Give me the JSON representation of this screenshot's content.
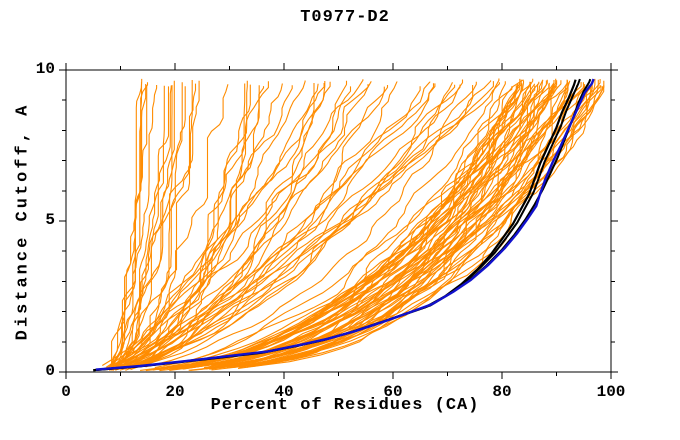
{
  "chart_data": {
    "type": "line",
    "title": "T0977-D2",
    "xlabel": "Percent of Residues (CA)",
    "ylabel": "Distance Cutoff, A",
    "xlim": [
      0,
      100
    ],
    "ylim": [
      0,
      10
    ],
    "x_major_ticks": [
      0,
      20,
      40,
      60,
      80,
      100
    ],
    "x_minor_step": 10,
    "y_major_ticks": [
      0,
      5,
      10
    ],
    "y_minor_step": 1,
    "grid": false,
    "legend": null,
    "tick_style": "outward-mirrored-all-sides",
    "colors": {
      "ensemble": "#FF8C00",
      "black_model": "#000000",
      "blue_model": "#1111CC",
      "frame": "#000000",
      "background": "#FFFFFF"
    },
    "ensemble": {
      "description": "approx 110 orange model curves fanning from ~5% at 0 A; best models reach ~100% and worst ~11% at cutoff ~9.7 A",
      "count": 110,
      "seed": 20977,
      "start_percent": [
        3.5,
        8
      ],
      "start_cutoff": [
        0.04,
        0.22
      ],
      "top_cutoff": [
        9.45,
        9.72
      ],
      "groups": [
        {
          "name": "poor",
          "weight": 0.18,
          "end_percent": [
            11,
            40
          ],
          "shape_p": [
            0.3,
            0.55
          ]
        },
        {
          "name": "mid",
          "weight": 0.27,
          "end_percent": [
            40,
            82
          ],
          "shape_p": [
            0.42,
            0.78
          ]
        },
        {
          "name": "good",
          "weight": 0.55,
          "end_percent": [
            82,
            100.4
          ],
          "shape_p": [
            0.26,
            0.45
          ]
        }
      ],
      "wiggle": 1.5,
      "y_step": 0.22
    },
    "highlight_series": [
      {
        "name": "black-model-1",
        "color": "#000000",
        "width": 2.2,
        "points": [
          [
            5,
            0.06
          ],
          [
            13,
            0.18
          ],
          [
            21,
            0.33
          ],
          [
            28,
            0.47
          ],
          [
            36,
            0.64
          ],
          [
            42,
            0.85
          ],
          [
            47,
            1.05
          ],
          [
            52,
            1.3
          ],
          [
            57,
            1.6
          ],
          [
            62,
            1.9
          ],
          [
            66,
            2.15
          ],
          [
            69.5,
            2.5
          ],
          [
            72.5,
            2.9
          ],
          [
            75.5,
            3.4
          ],
          [
            78,
            3.9
          ],
          [
            80,
            4.4
          ],
          [
            82,
            4.9
          ],
          [
            83.5,
            5.4
          ],
          [
            85,
            5.9
          ],
          [
            86,
            6.4
          ],
          [
            87,
            6.9
          ],
          [
            88.5,
            7.5
          ],
          [
            90,
            8.1
          ],
          [
            91,
            8.6
          ],
          [
            92.3,
            9.1
          ],
          [
            93.2,
            9.5
          ],
          [
            93.5,
            9.68
          ]
        ]
      },
      {
        "name": "black-model-2",
        "color": "#000000",
        "width": 2.0,
        "points": [
          [
            5,
            0.06
          ],
          [
            13,
            0.18
          ],
          [
            21.3,
            0.34
          ],
          [
            28.3,
            0.48
          ],
          [
            36.3,
            0.65
          ],
          [
            42.3,
            0.86
          ],
          [
            47.3,
            1.06
          ],
          [
            52.3,
            1.31
          ],
          [
            57.3,
            1.61
          ],
          [
            62.3,
            1.92
          ],
          [
            66.3,
            2.17
          ],
          [
            70,
            2.55
          ],
          [
            73,
            2.95
          ],
          [
            76,
            3.45
          ],
          [
            78.7,
            3.95
          ],
          [
            80.8,
            4.45
          ],
          [
            82.8,
            4.95
          ],
          [
            84.3,
            5.45
          ],
          [
            85.8,
            5.95
          ],
          [
            86.8,
            6.45
          ],
          [
            87.8,
            6.95
          ],
          [
            89.3,
            7.55
          ],
          [
            90.8,
            8.15
          ],
          [
            91.8,
            8.65
          ],
          [
            93,
            9.15
          ],
          [
            94,
            9.55
          ],
          [
            94.3,
            9.7
          ]
        ]
      },
      {
        "name": "black-model-3",
        "color": "#000000",
        "width": 2.0,
        "points": [
          [
            5.3,
            0.07
          ],
          [
            13.3,
            0.19
          ],
          [
            21.6,
            0.35
          ],
          [
            28.6,
            0.5
          ],
          [
            36.6,
            0.67
          ],
          [
            42.6,
            0.88
          ],
          [
            47.6,
            1.08
          ],
          [
            52.6,
            1.33
          ],
          [
            57.6,
            1.63
          ],
          [
            62.6,
            1.95
          ],
          [
            66.8,
            2.2
          ],
          [
            70.5,
            2.6
          ],
          [
            73.8,
            3.0
          ],
          [
            77,
            3.5
          ],
          [
            80,
            4.05
          ],
          [
            82.3,
            4.55
          ],
          [
            84.3,
            5.05
          ],
          [
            86,
            5.55
          ],
          [
            87.5,
            6.05
          ],
          [
            88.8,
            6.55
          ],
          [
            90.2,
            7.1
          ],
          [
            91.5,
            7.7
          ],
          [
            92.8,
            8.3
          ],
          [
            94,
            8.9
          ],
          [
            95,
            9.3
          ],
          [
            96,
            9.6
          ],
          [
            96.2,
            9.7
          ]
        ]
      },
      {
        "name": "blue-model",
        "color": "#1111CC",
        "width": 2.4,
        "points": [
          [
            5.5,
            0.08
          ],
          [
            13.6,
            0.2
          ],
          [
            22,
            0.36
          ],
          [
            29,
            0.51
          ],
          [
            37,
            0.68
          ],
          [
            43,
            0.9
          ],
          [
            48,
            1.1
          ],
          [
            53,
            1.35
          ],
          [
            58,
            1.65
          ],
          [
            63,
            1.97
          ],
          [
            67.2,
            2.25
          ],
          [
            71,
            2.65
          ],
          [
            74.3,
            3.05
          ],
          [
            77.5,
            3.55
          ],
          [
            80.5,
            4.1
          ],
          [
            82.8,
            4.6
          ],
          [
            84.8,
            5.1
          ],
          [
            86.3,
            5.5
          ],
          [
            87,
            5.9
          ],
          [
            88,
            6.4
          ],
          [
            89.3,
            6.95
          ],
          [
            90.8,
            7.5
          ],
          [
            92.3,
            8.1
          ],
          [
            93.8,
            8.7
          ],
          [
            95.2,
            9.25
          ],
          [
            96.5,
            9.55
          ],
          [
            96.8,
            9.7
          ]
        ]
      }
    ]
  }
}
